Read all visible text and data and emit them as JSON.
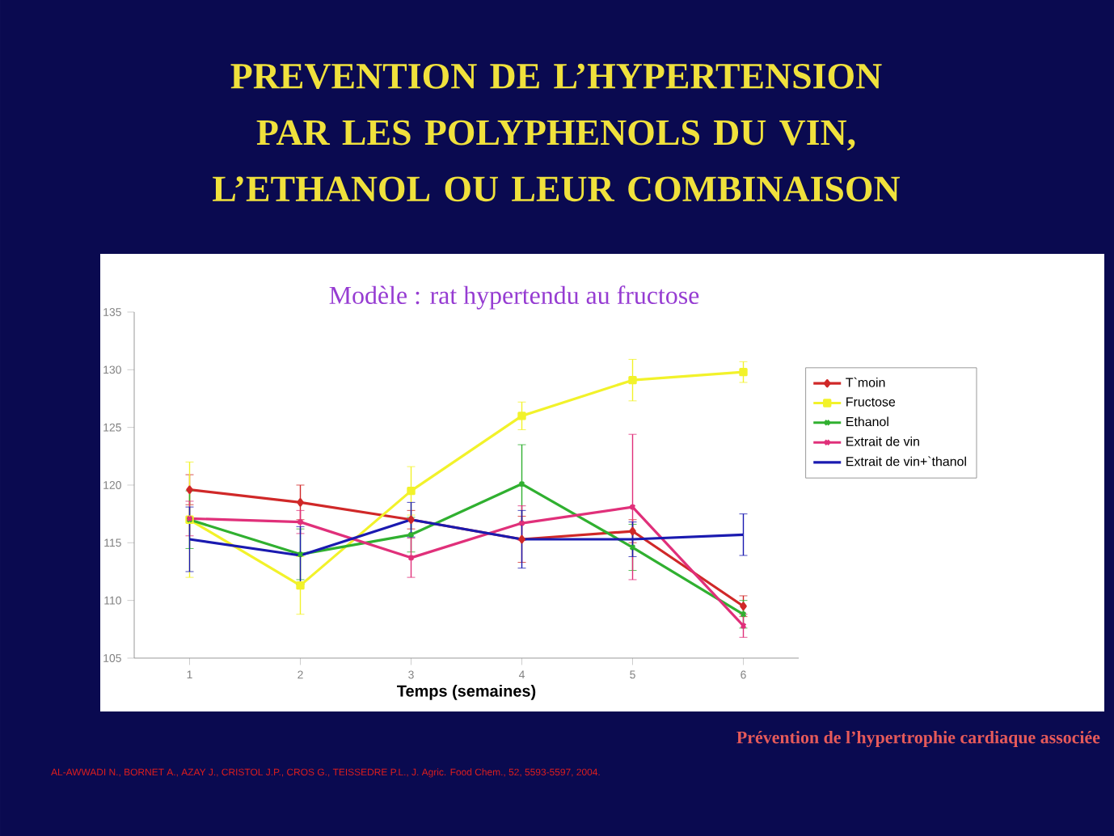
{
  "chart_data": {
    "type": "line",
    "title": "PREVENTION DE L’HYPERTENSION PAR LES POLYPHENOLS DU VIN, L’ETHANOL OU LEUR COMBINAISON",
    "subtitle": "Modèle : rat hypertendu au fructose",
    "xlabel": "Temps (semaines)",
    "categories": [
      "1",
      "2",
      "3",
      "4",
      "5",
      "6"
    ],
    "ylim": [
      105,
      135
    ],
    "yticks": [
      105,
      110,
      115,
      120,
      125,
      130,
      135
    ],
    "grid": false,
    "legend": "right",
    "series": [
      {
        "name": "T`moin",
        "color": "#d02828",
        "marker": "diamond",
        "values": [
          119.6,
          118.5,
          117.0,
          115.3,
          116.0,
          109.5
        ],
        "errors": [
          1.3,
          1.5,
          0.8,
          2.0,
          1.0,
          0.9
        ]
      },
      {
        "name": "Fructose",
        "color": "#f2f22a",
        "marker": "square",
        "values": [
          117.0,
          111.3,
          119.5,
          126.0,
          129.1,
          129.8
        ],
        "errors": [
          5.0,
          2.5,
          2.1,
          1.2,
          1.8,
          0.9
        ]
      },
      {
        "name": "Ethanol",
        "color": "#30b030",
        "marker": "cross",
        "values": [
          117.0,
          114.0,
          115.7,
          120.1,
          114.6,
          108.8
        ],
        "errors": [
          2.5,
          2.2,
          1.5,
          3.4,
          2.0,
          1.2
        ]
      },
      {
        "name": "Extrait de vin",
        "color": "#e0307a",
        "marker": "cross",
        "values": [
          117.1,
          116.8,
          113.7,
          116.7,
          118.1,
          107.8
        ],
        "errors": [
          1.5,
          1.0,
          1.7,
          1.5,
          6.3,
          1.0
        ]
      },
      {
        "name": "Extrait de vin+`thanol",
        "color": "#1a1ab0",
        "marker": "none",
        "values": [
          115.3,
          113.9,
          117.0,
          115.3,
          115.3,
          115.7
        ],
        "errors": [
          2.8,
          2.5,
          1.5,
          2.5,
          1.5,
          1.8
        ]
      }
    ],
    "annotations": [
      "Prévention de l’hypertrophie cardiaque associée",
      "AL-AWWADI N., BORNET A., AZAY J., CRISTOL J.P., CROS G., TEISSEDRE P.L., J. Agric. Food Chem., 52, 5593-5597, 2004."
    ]
  }
}
